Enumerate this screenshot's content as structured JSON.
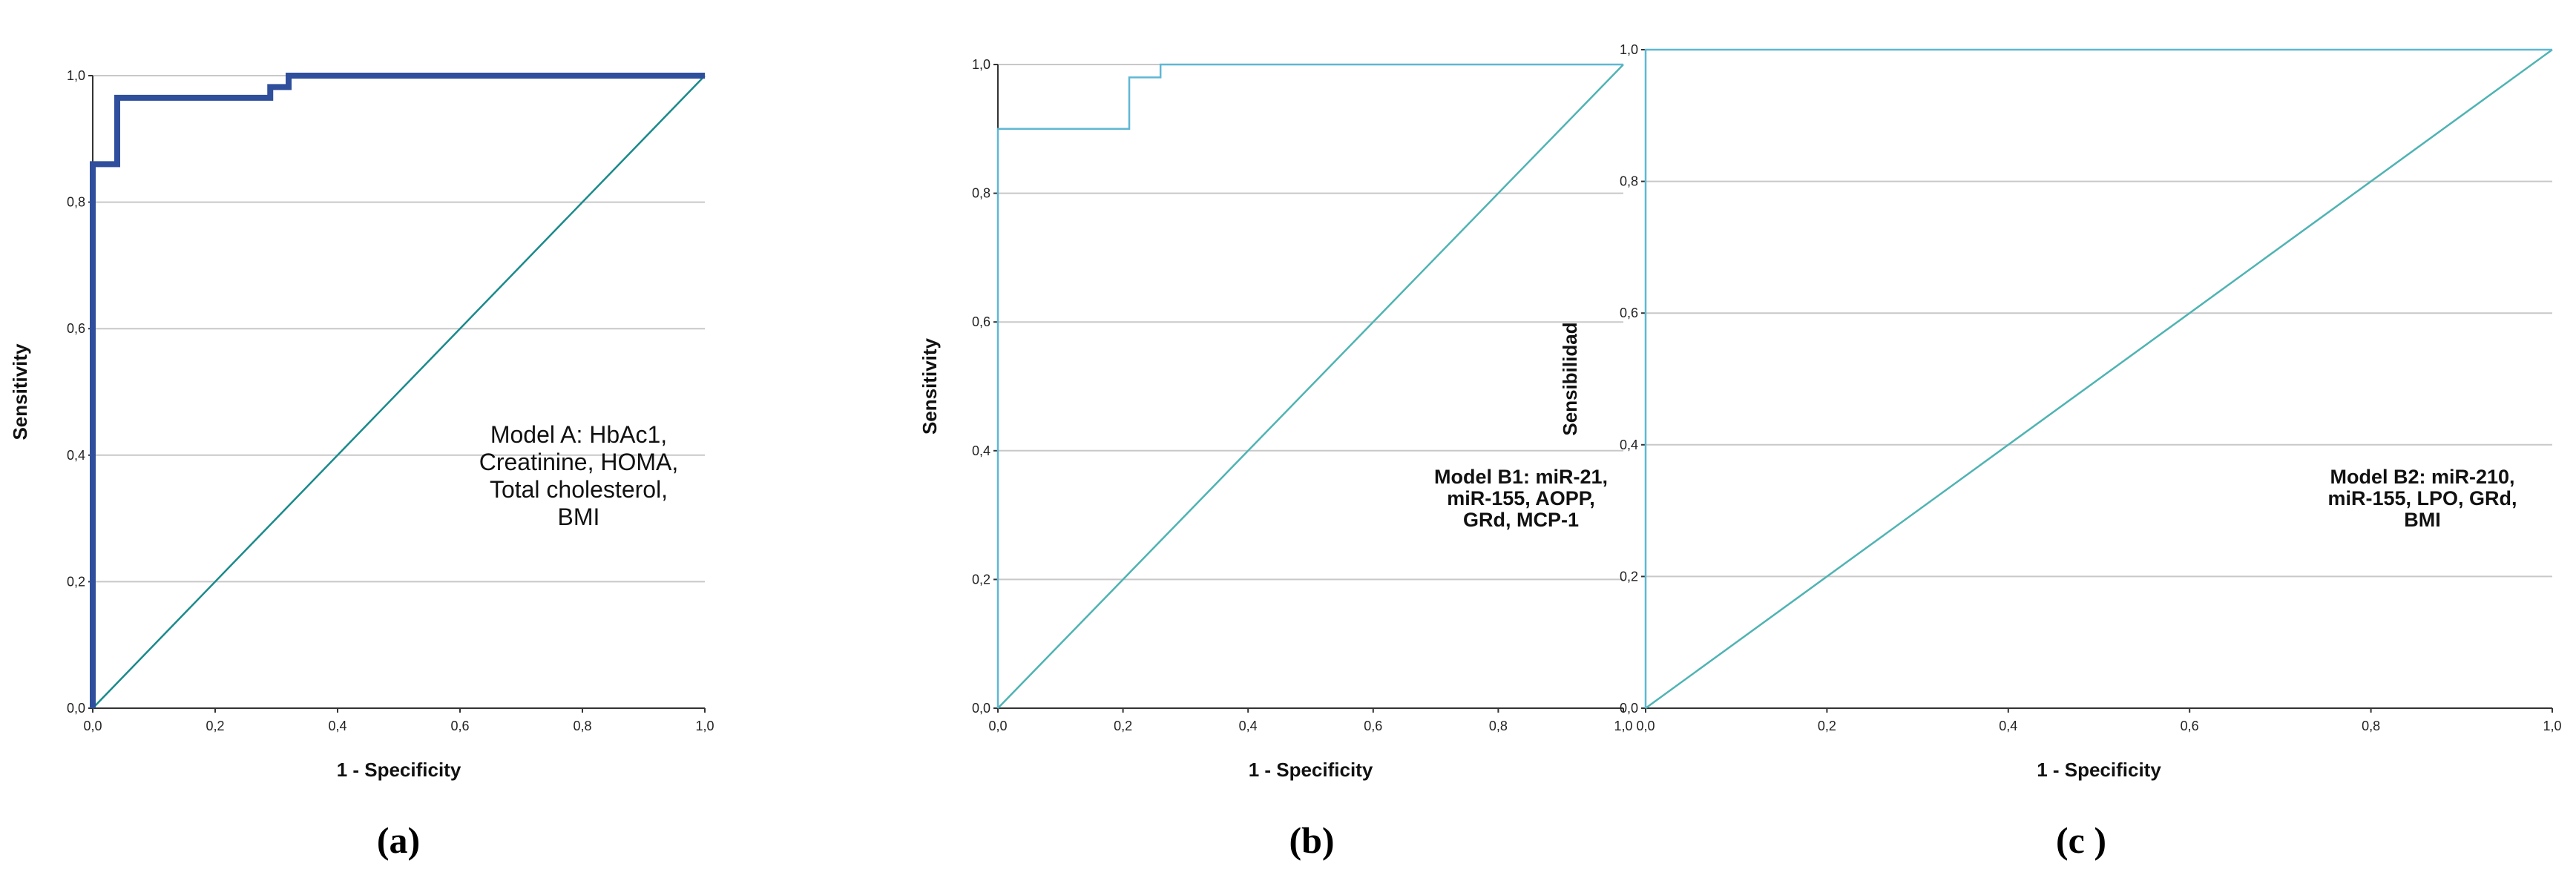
{
  "chart_data": [
    {
      "type": "line",
      "panel_label": "(a)",
      "xlabel": "1 - Specificity",
      "ylabel": "Sensitivity",
      "xlim": [
        0,
        1
      ],
      "ylim": [
        0,
        1
      ],
      "x_ticks": [
        "0,0",
        "0,2",
        "0,4",
        "0,6",
        "0,8",
        "1,0"
      ],
      "y_ticks": [
        "0,0",
        "0,2",
        "0,4",
        "0,6",
        "0,8",
        "1,0"
      ],
      "grid": "horizontal",
      "roc_color": "#2f4f9c",
      "reference_color": "#1a8a8c",
      "annotation": [
        "Model A: HbAc1,",
        "Creatinine, HOMA,",
        "Total cholesterol,",
        "BMI"
      ],
      "series": [
        {
          "x": [
            0,
            0,
            0.04,
            0.04,
            0.29,
            0.29,
            0.32,
            0.32,
            1.0
          ],
          "y": [
            0,
            0.86,
            0.86,
            0.965,
            0.965,
            0.982,
            0.982,
            1.0,
            1.0
          ]
        },
        {
          "x": [
            0,
            1
          ],
          "y": [
            0,
            1
          ]
        }
      ]
    },
    {
      "type": "line",
      "panel_label": "(b)",
      "xlabel": "1 - Specificity",
      "ylabel": "Sensitivity",
      "xlim": [
        0,
        1
      ],
      "ylim": [
        0,
        1
      ],
      "x_ticks": [
        "0,0",
        "0,2",
        "0,4",
        "0,6",
        "0,8",
        "1,0"
      ],
      "y_ticks": [
        "0,0",
        "0,2",
        "0,4",
        "0,6",
        "0,8",
        "1,0"
      ],
      "grid": "horizontal",
      "roc_color": "#5fb7d4",
      "reference_color": "#4fb3b3",
      "annotation": [
        "Model B1: miR-21,",
        "miR-155, AOPP,",
        "GRd, MCP-1"
      ],
      "series": [
        {
          "x": [
            0,
            0,
            0.21,
            0.21,
            0.26,
            0.26,
            1.0
          ],
          "y": [
            0,
            0.9,
            0.9,
            0.98,
            0.98,
            1.0,
            1.0
          ]
        },
        {
          "x": [
            0,
            1
          ],
          "y": [
            0,
            1
          ]
        }
      ]
    },
    {
      "type": "line",
      "panel_label": "(c )",
      "xlabel": "1 - Specificity",
      "ylabel": "Sensibilidad",
      "xlim": [
        0,
        1
      ],
      "ylim": [
        0,
        1
      ],
      "x_ticks": [
        "0,0",
        "0,2",
        "0,4",
        "0,6",
        "0,8",
        "1,0"
      ],
      "y_ticks": [
        "0,0",
        "0,2",
        "0,4",
        "0,6",
        "0,8",
        "1,0"
      ],
      "grid": "horizontal",
      "roc_color": "#5fb7d4",
      "reference_color": "#4fb3b3",
      "annotation": [
        "Model B2: miR-210,",
        "miR-155, LPO, GRd,",
        "BMI"
      ],
      "series": [
        {
          "x": [
            0,
            0,
            1.0
          ],
          "y": [
            0,
            1.0,
            1.0
          ]
        },
        {
          "x": [
            0,
            1
          ],
          "y": [
            0,
            1
          ]
        }
      ]
    }
  ]
}
